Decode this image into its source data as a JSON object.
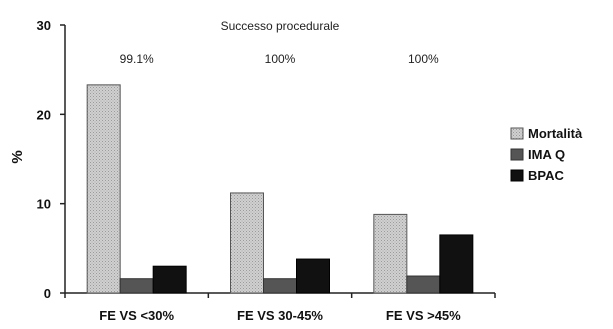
{
  "chart_data": {
    "type": "bar",
    "title": "",
    "xlabel": "",
    "ylabel": "%",
    "ylim": [
      0,
      30
    ],
    "yticks": [
      0,
      10,
      20,
      30
    ],
    "grid": false,
    "legend_position": "right",
    "categories": [
      "FE VS <30%",
      "FE VS 30-45%",
      "FE VS >45%"
    ],
    "series": [
      {
        "name": "Mortalità",
        "values": [
          23.3,
          11.2,
          8.8
        ],
        "color": "#c8c8c8"
      },
      {
        "name": "IMA Q",
        "values": [
          1.6,
          1.6,
          1.9
        ],
        "color": "#555555"
      },
      {
        "name": "BPAC",
        "values": [
          3.0,
          3.8,
          6.5
        ],
        "color": "#111111"
      }
    ],
    "annotation_header": "Successo procedurale",
    "annotations": [
      "99.1%",
      "100%",
      "100%"
    ]
  }
}
